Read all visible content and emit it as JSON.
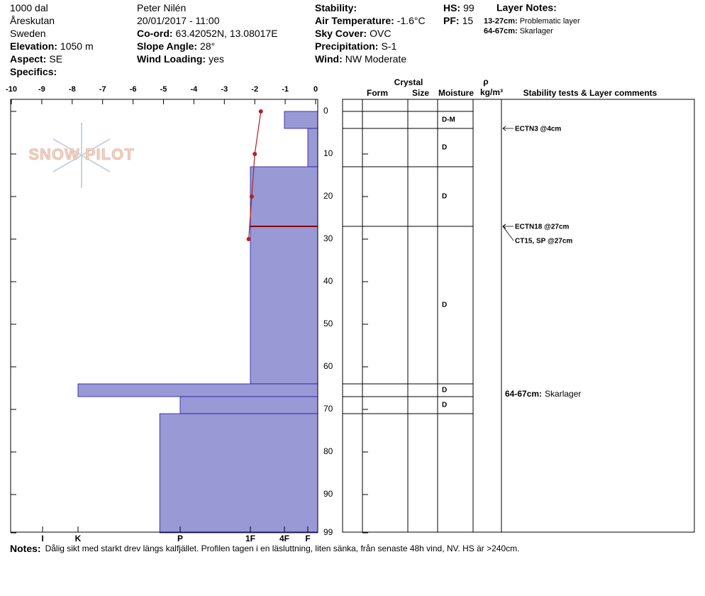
{
  "header": {
    "columns": [
      [
        {
          "text": "1000 dal"
        },
        {
          "text": "Åreskutan"
        },
        {
          "text": "Sweden"
        },
        {
          "label": "Elevation:",
          "value": "1050 m"
        },
        {
          "label": "Aspect:",
          "value": "SE"
        },
        {
          "label": "Specifics:"
        }
      ],
      [
        {
          "text": "Peter Nilén"
        },
        {
          "text": "20/01/2017 - 11:00"
        },
        {
          "label": "Co-ord:",
          "value": "63.42052N, 13.08017E"
        },
        {
          "label": "Slope Angle:",
          "value": "28°"
        },
        {
          "label": "Wind Loading:",
          "value": "yes"
        }
      ],
      [
        {
          "label": "Stability:"
        },
        {
          "label": "Air Temperature:",
          "value": "-1.6°C"
        },
        {
          "label": "Sky Cover:",
          "value": "OVC"
        },
        {
          "label": "Precipitation:",
          "value": "S-1"
        },
        {
          "label": "Wind:",
          "value": "NW Moderate"
        }
      ],
      [
        {
          "label": "HS:",
          "value": 99
        },
        {
          "label": "PF:",
          "value": 15
        }
      ]
    ],
    "layer_notes": {
      "title": "Layer Notes:",
      "items": [
        {
          "label": "13-27cm:",
          "value": "Problematic layer"
        },
        {
          "label": "64-67cm:",
          "value": "Skarlager"
        }
      ]
    }
  },
  "chart_data": {
    "type": "snow_profile",
    "watermark": "SNOW PILOT",
    "xlim": [
      -10,
      0
    ],
    "xticks": [
      -10,
      -9,
      -8,
      -7,
      -6,
      -5,
      -4,
      -3,
      -2,
      -1,
      0
    ],
    "ylim": [
      0,
      99
    ],
    "yticks": [
      0,
      10,
      20,
      30,
      40,
      50,
      60,
      70,
      80,
      90,
      99
    ],
    "hardness_ticks": [
      {
        "value": 6,
        "label": "I"
      },
      {
        "value": 5,
        "label": "K"
      },
      {
        "value": 4,
        "label": "P"
      },
      {
        "value": 3,
        "label": "1F"
      },
      {
        "value": 2,
        "label": "4F"
      },
      {
        "value": 1,
        "label": "F"
      }
    ],
    "layer_color": "#9999d6",
    "temperature": {
      "depth": [
        0,
        10,
        20,
        30
      ],
      "values": [
        -1.8,
        -2.0,
        -2.1,
        -2.2
      ],
      "color": "#b22222"
    },
    "layers": [
      {
        "top": 0,
        "bottom": 4,
        "hardness": 2,
        "moisture": "D-M"
      },
      {
        "top": 4,
        "bottom": 13,
        "hardness": 1,
        "moisture": "D"
      },
      {
        "top": 13,
        "bottom": 27,
        "hardness": 3,
        "moisture": "D"
      },
      {
        "top": 27,
        "bottom": 64,
        "hardness": 3,
        "moisture": "D"
      },
      {
        "top": 64,
        "bottom": 67,
        "hardness": 5,
        "moisture": "D"
      },
      {
        "top": 67,
        "bottom": 71,
        "hardness": 4,
        "moisture": "D"
      },
      {
        "top": 71,
        "bottom": 99,
        "hardness": 4.2
      }
    ],
    "failure_depth": 27,
    "table_headers": {
      "crystal": "Crystal",
      "form": "Form",
      "size": "Size",
      "moisture": "Moisture",
      "density_symbol": "ρ",
      "density_unit": "kg/m³",
      "comments": "Stability tests & Layer comments"
    },
    "tests": [
      {
        "label": "ECTN3 @4cm",
        "depth": 4
      },
      {
        "label": "ECTN18 @27cm",
        "depth": 27
      },
      {
        "label": "CT15, SP @27cm",
        "depth": 27
      }
    ],
    "layer_comments": [
      {
        "label": "64-67cm:",
        "text": "Skarlager",
        "top": 64,
        "bottom": 67
      }
    ]
  },
  "notes": {
    "label": "Notes:",
    "text": "Dålig sikt med starkt drev längs kalfjället. Profilen tagen i en läsluttning, liten sänka, från senaste 48h vind, NV. HS är >240cm."
  }
}
